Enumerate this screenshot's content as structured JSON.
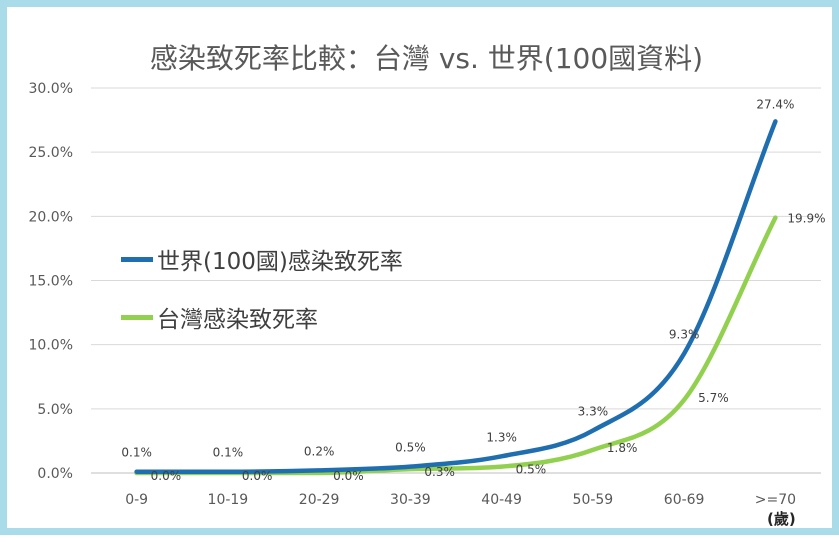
{
  "chart_data": {
    "type": "line",
    "title": "感染致死率比較：台灣 vs. 世界(100國資料)",
    "categories": [
      "0-9",
      "10-19",
      "20-29",
      "30-39",
      "40-49",
      "50-59",
      "60-69",
      ">=70"
    ],
    "category_unit": "(歲)",
    "ylim": [
      0,
      30
    ],
    "yticks": [
      "0.0%",
      "5.0%",
      "10.0%",
      "15.0%",
      "20.0%",
      "25.0%",
      "30.0%"
    ],
    "grid": true,
    "legend_placement": "left",
    "series": [
      {
        "name": "世界(100國)感染致死率",
        "color": "#1f6eb0",
        "values": [
          0.1,
          0.1,
          0.2,
          0.5,
          1.3,
          3.3,
          9.3,
          27.4
        ],
        "labels": [
          "0.1%",
          "0.1%",
          "0.2%",
          "0.5%",
          "1.3%",
          "3.3%",
          "9.3%",
          "27.4%"
        ]
      },
      {
        "name": "台灣感染致死率",
        "color": "#92d050",
        "values": [
          0.0,
          0.0,
          0.0,
          0.3,
          0.5,
          1.8,
          5.7,
          19.9
        ],
        "labels": [
          "0.0%",
          "0.0%",
          "0.0%",
          "0.3%",
          "0.5%",
          "1.8%",
          "5.7%",
          "19.9%"
        ]
      }
    ]
  }
}
